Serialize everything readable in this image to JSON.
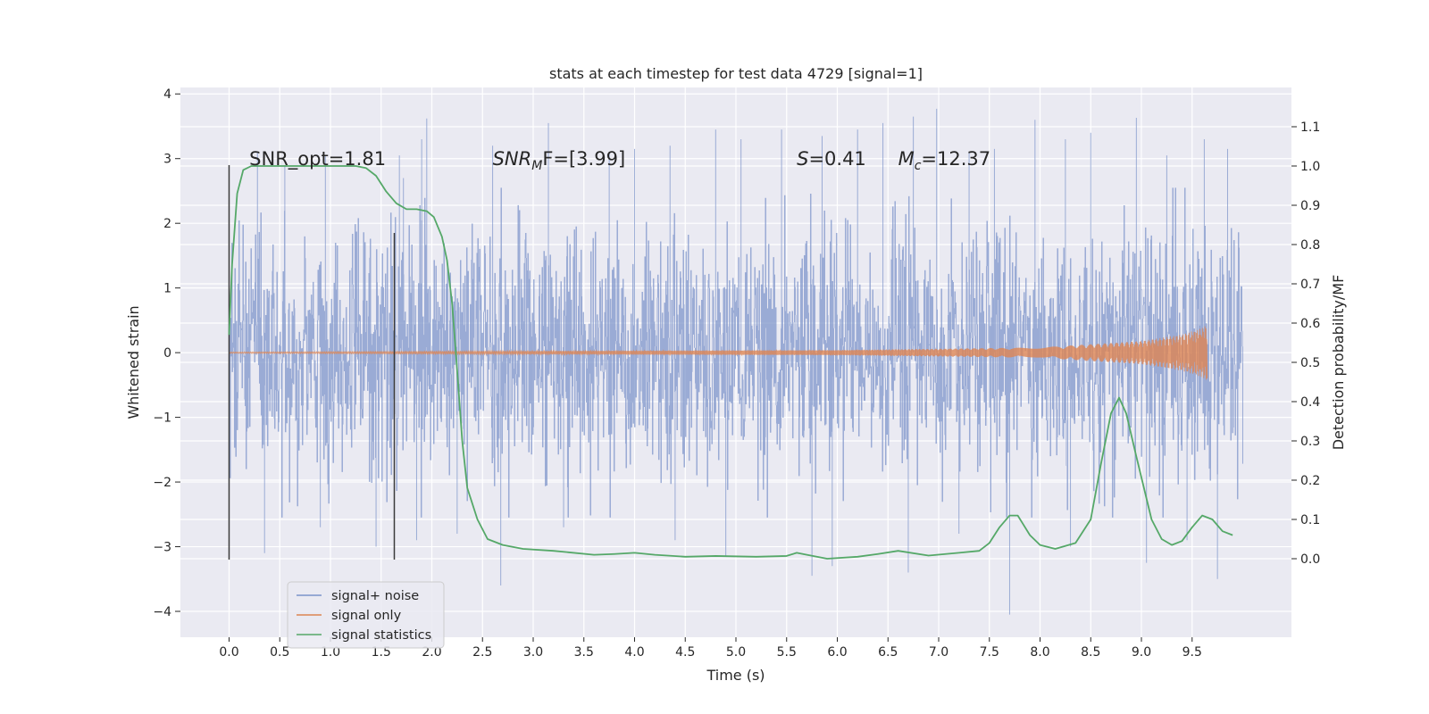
{
  "chart_data": {
    "type": "line",
    "title": "stats at each timestep for test data 4729 [signal=1]",
    "xlabel": "Time (s)",
    "ylabel": "Whitened strain",
    "y2label": "Detection probability/MF",
    "xlim": [
      -0.48,
      10.48
    ],
    "ylim": [
      -4.4,
      4.1
    ],
    "y2lim": [
      -0.2,
      1.2
    ],
    "xticks": [
      "0.0",
      "0.5",
      "1.0",
      "1.5",
      "2.0",
      "2.5",
      "3.0",
      "3.5",
      "4.0",
      "4.5",
      "5.0",
      "5.5",
      "6.0",
      "6.5",
      "7.0",
      "7.5",
      "8.0",
      "8.5",
      "9.0",
      "9.5"
    ],
    "yticks": [
      "4",
      "3",
      "2",
      "1",
      "0",
      "−1",
      "−2",
      "−3",
      "−4"
    ],
    "y2ticks": [
      "1.1",
      "1.0",
      "0.9",
      "0.8",
      "0.7",
      "0.6",
      "0.5",
      "0.4",
      "0.3",
      "0.2",
      "0.1",
      "0.0"
    ],
    "grid": true,
    "legend_position": "lower-left",
    "colors": {
      "noise": "#7b93c9",
      "signal": "#dd8452",
      "stats": "#55a868",
      "background": "#eaeaf2",
      "grid": "#ffffff",
      "marker": "#3a3a3a"
    },
    "annotations": [
      {
        "id": "snr-opt",
        "text": "SNR_opt=1.81",
        "x": 0.2
      },
      {
        "id": "snr-mf",
        "prefix": "SNR",
        "sub": "M",
        "suffix": "F=[3.99]",
        "x": 2.6
      },
      {
        "id": "s-val",
        "prefix": "S",
        "suffix": "=0.41",
        "x": 5.6
      },
      {
        "id": "mc-val",
        "prefix": "M",
        "sub": "c",
        "suffix": "=12.37",
        "x": 6.6
      }
    ],
    "markers": {
      "x": [
        0.0,
        1.63
      ],
      "line1": {
        "y_top": 2.9,
        "y_bottom": -3.2
      },
      "line2": {
        "y_top": 1.85,
        "y_bottom": -3.2
      }
    },
    "noise_series": {
      "name": "signal+ noise",
      "x_range": [
        0.0,
        10.0
      ],
      "typical_amplitude": 1.0,
      "max": 3.77,
      "min": -4.05,
      "peaks": [
        {
          "x": 0.28,
          "y": 3.1
        },
        {
          "x": 0.55,
          "y": 2.9
        },
        {
          "x": 0.95,
          "y": 3.05
        },
        {
          "x": 1.68,
          "y": 3.05
        },
        {
          "x": 1.72,
          "y": 2.7
        },
        {
          "x": 1.9,
          "y": 3.3
        },
        {
          "x": 1.95,
          "y": 3.62
        },
        {
          "x": 2.6,
          "y": 3.2
        },
        {
          "x": 3.15,
          "y": 3.55
        },
        {
          "x": 3.75,
          "y": 3.1
        },
        {
          "x": 4.0,
          "y": 3.15
        },
        {
          "x": 4.35,
          "y": 3.2
        },
        {
          "x": 4.8,
          "y": 3.45
        },
        {
          "x": 5.05,
          "y": 3.3
        },
        {
          "x": 5.45,
          "y": 3.45
        },
        {
          "x": 5.85,
          "y": 3.35
        },
        {
          "x": 6.2,
          "y": 3.45
        },
        {
          "x": 6.45,
          "y": 3.55
        },
        {
          "x": 6.75,
          "y": 3.65
        },
        {
          "x": 6.98,
          "y": 3.77
        },
        {
          "x": 7.3,
          "y": 3.1
        },
        {
          "x": 7.55,
          "y": 3.15
        },
        {
          "x": 7.95,
          "y": 3.6
        },
        {
          "x": 8.25,
          "y": 3.3
        },
        {
          "x": 8.5,
          "y": 3.4
        },
        {
          "x": 8.95,
          "y": 3.63
        },
        {
          "x": 9.25,
          "y": 3.05
        },
        {
          "x": 9.62,
          "y": 3.3
        },
        {
          "x": 9.85,
          "y": 3.15
        }
      ],
      "troughs": [
        {
          "x": 0.35,
          "y": -3.1
        },
        {
          "x": 0.9,
          "y": -2.7
        },
        {
          "x": 1.45,
          "y": -3.0
        },
        {
          "x": 1.85,
          "y": -2.9
        },
        {
          "x": 2.25,
          "y": -2.8
        },
        {
          "x": 2.68,
          "y": -3.6
        },
        {
          "x": 3.3,
          "y": -2.7
        },
        {
          "x": 4.4,
          "y": -2.9
        },
        {
          "x": 4.9,
          "y": -3.15
        },
        {
          "x": 5.75,
          "y": -3.45
        },
        {
          "x": 5.95,
          "y": -3.3
        },
        {
          "x": 6.7,
          "y": -3.4
        },
        {
          "x": 7.2,
          "y": -2.8
        },
        {
          "x": 7.7,
          "y": -4.05
        },
        {
          "x": 8.3,
          "y": -3.0
        },
        {
          "x": 9.05,
          "y": -3.25
        },
        {
          "x": 9.45,
          "y": -2.9
        },
        {
          "x": 9.75,
          "y": -3.5
        }
      ]
    },
    "signal_series": {
      "name": "signal only",
      "x_range": [
        0.0,
        9.65
      ],
      "envelope": [
        [
          0.0,
          0.01
        ],
        [
          6.0,
          0.04
        ],
        [
          8.0,
          0.08
        ],
        [
          9.0,
          0.18
        ],
        [
          9.4,
          0.28
        ],
        [
          9.6,
          0.38
        ],
        [
          9.65,
          0.45
        ]
      ]
    },
    "stats_series": {
      "name": "signal statistics",
      "x": [
        0.0,
        0.03,
        0.08,
        0.14,
        0.22,
        0.35,
        0.6,
        1.0,
        1.15,
        1.25,
        1.35,
        1.45,
        1.55,
        1.65,
        1.75,
        1.85,
        1.95,
        2.02,
        2.1,
        2.15,
        2.2,
        2.25,
        2.3,
        2.35,
        2.45,
        2.55,
        2.7,
        2.9,
        3.2,
        3.6,
        3.8,
        4.0,
        4.2,
        4.5,
        4.8,
        5.2,
        5.5,
        5.6,
        5.7,
        5.9,
        6.2,
        6.4,
        6.6,
        6.9,
        7.2,
        7.4,
        7.5,
        7.6,
        7.7,
        7.78,
        7.9,
        8.0,
        8.15,
        8.35,
        8.5,
        8.6,
        8.7,
        8.78,
        8.85,
        8.95,
        9.1,
        9.2,
        9.3,
        9.4,
        9.5,
        9.6,
        9.7,
        9.8,
        9.9
      ],
      "y": [
        0.57,
        0.75,
        0.93,
        0.99,
        1.0,
        1.0,
        1.0,
        1.0,
        1.0,
        1.0,
        0.995,
        0.975,
        0.935,
        0.905,
        0.89,
        0.89,
        0.885,
        0.87,
        0.82,
        0.76,
        0.65,
        0.48,
        0.3,
        0.18,
        0.1,
        0.05,
        0.035,
        0.025,
        0.02,
        0.01,
        0.012,
        0.015,
        0.01,
        0.005,
        0.007,
        0.005,
        0.007,
        0.015,
        0.01,
        0.0,
        0.005,
        0.012,
        0.02,
        0.008,
        0.015,
        0.02,
        0.04,
        0.08,
        0.11,
        0.11,
        0.06,
        0.035,
        0.025,
        0.04,
        0.1,
        0.24,
        0.37,
        0.41,
        0.37,
        0.26,
        0.1,
        0.05,
        0.035,
        0.045,
        0.08,
        0.11,
        0.1,
        0.07,
        0.06
      ]
    },
    "legend": [
      {
        "label": "signal+ noise",
        "color_key": "noise"
      },
      {
        "label": "signal only",
        "color_key": "signal"
      },
      {
        "label": "signal statistics",
        "color_key": "stats"
      }
    ]
  }
}
